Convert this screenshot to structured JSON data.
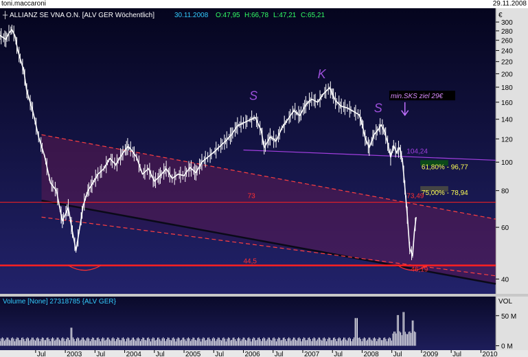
{
  "header": {
    "user": "toni.maccaroni",
    "date": "29.11.2008"
  },
  "chart_data": {
    "type": "line",
    "title": "ALLIANZ SE VNA O.N. [ALV GER  Wöchentlich]",
    "quote": {
      "date": "30.11.2008",
      "open": "O:47,95",
      "high": "H:66,78",
      "low": "L:47,21",
      "close": "C:65,21"
    },
    "currency_label": "€",
    "y_scale": "log",
    "ylim": [
      36,
      310
    ],
    "xlim": [
      2001.9,
      2010.25
    ],
    "y_ticks": [
      {
        "v": 300,
        "t": "300"
      },
      {
        "v": 280,
        "t": "280"
      },
      {
        "v": 260,
        "t": "260"
      },
      {
        "v": 240,
        "t": "240"
      },
      {
        "v": 220,
        "t": "220"
      },
      {
        "v": 200,
        "t": "200"
      },
      {
        "v": 180,
        "t": "180"
      },
      {
        "v": 160,
        "t": "160"
      },
      {
        "v": 140,
        "t": "140"
      },
      {
        "v": 120,
        "t": "120"
      },
      {
        "v": 100,
        "t": "100"
      },
      {
        "v": 80,
        "t": "80"
      },
      {
        "v": 60,
        "t": "60"
      },
      {
        "v": 40,
        "t": "40"
      }
    ],
    "x_ticks": [
      {
        "v": 2002.5,
        "t": "Jul"
      },
      {
        "v": 2003.0,
        "t": "2003"
      },
      {
        "v": 2003.5,
        "t": "Jul"
      },
      {
        "v": 2004.0,
        "t": "2004"
      },
      {
        "v": 2004.5,
        "t": "Jul"
      },
      {
        "v": 2005.0,
        "t": "2005"
      },
      {
        "v": 2005.5,
        "t": "Jul"
      },
      {
        "v": 2006.0,
        "t": "2006"
      },
      {
        "v": 2006.5,
        "t": "Jul"
      },
      {
        "v": 2007.0,
        "t": "2007"
      },
      {
        "v": 2007.5,
        "t": "Jul"
      },
      {
        "v": 2008.0,
        "t": "2008"
      },
      {
        "v": 2008.5,
        "t": "Jul"
      },
      {
        "v": 2009.0,
        "t": "2009"
      },
      {
        "v": 2009.5,
        "t": "Jul"
      },
      {
        "v": 2010.0,
        "t": "2010"
      }
    ],
    "series": [
      {
        "name": "ALLIANZ SE VNA O.N.",
        "x": [
          2001.9,
          2002.0,
          2002.05,
          2002.1,
          2002.15,
          2002.2,
          2002.3,
          2002.35,
          2002.45,
          2002.55,
          2002.65,
          2002.75,
          2002.85,
          2002.95,
          2003.05,
          2003.12,
          2003.18,
          2003.25,
          2003.3,
          2003.38,
          2003.45,
          2003.55,
          2003.65,
          2003.75,
          2003.85,
          2003.95,
          2004.05,
          2004.1,
          2004.2,
          2004.3,
          2004.4,
          2004.5,
          2004.6,
          2004.7,
          2004.8,
          2004.9,
          2005.0,
          2005.1,
          2005.2,
          2005.3,
          2005.4,
          2005.5,
          2005.6,
          2005.7,
          2005.8,
          2005.9,
          2006.0,
          2006.1,
          2006.2,
          2006.3,
          2006.35,
          2006.45,
          2006.55,
          2006.65,
          2006.75,
          2006.85,
          2006.95,
          2007.05,
          2007.15,
          2007.25,
          2007.35,
          2007.45,
          2007.5,
          2007.55,
          2007.65,
          2007.75,
          2007.85,
          2007.95,
          2008.0,
          2008.05,
          2008.12,
          2008.2,
          2008.27,
          2008.32,
          2008.38,
          2008.43,
          2008.48,
          2008.53,
          2008.58,
          2008.63,
          2008.68,
          2008.72,
          2008.76,
          2008.8,
          2008.85,
          2008.88,
          2008.91
        ],
        "values": [
          270,
          262,
          275,
          283,
          270,
          240,
          205,
          175,
          150,
          122,
          105,
          85,
          80,
          63,
          70,
          58,
          50,
          61,
          71,
          80,
          84,
          91,
          95,
          103,
          98,
          106,
          113,
          111,
          104,
          91,
          95,
          86,
          90,
          95,
          88,
          91,
          90,
          96,
          92,
          100,
          104,
          108,
          113,
          118,
          124,
          133,
          136,
          139,
          142,
          128,
          112,
          122,
          118,
          131,
          140,
          150,
          144,
          157,
          164,
          160,
          171,
          179,
          171,
          162,
          155,
          153,
          149,
          145,
          135,
          121,
          112,
          124,
          129,
          134,
          127,
          116,
          104,
          114,
          108,
          112,
          101,
          82,
          66,
          51,
          48,
          58,
          65
        ]
      }
    ],
    "volume": {
      "label": "Volume [None] 27318785 {ALV GER}",
      "unit_label": "VOL",
      "ticks": [
        {
          "v": 50,
          "t": "50 M"
        },
        {
          "v": 0,
          "t": "0 M"
        }
      ],
      "ylim_millions": [
        -5,
        68
      ],
      "base_millions": 14,
      "spikes": [
        {
          "x": 2003.1,
          "m": 30
        },
        {
          "x": 2007.9,
          "m": 46
        },
        {
          "x": 2008.6,
          "m": 51
        },
        {
          "x": 2008.7,
          "m": 56
        },
        {
          "x": 2008.85,
          "m": 42
        }
      ]
    },
    "annotations": {
      "labels": [
        {
          "text": "S",
          "x": 2006.1,
          "y": 163,
          "color": "#9b4fd9"
        },
        {
          "text": "K",
          "x": 2007.25,
          "y": 193,
          "color": "#9b4fd9"
        },
        {
          "text": "S",
          "x": 2008.2,
          "y": 148,
          "color": "#9b4fd9"
        }
      ],
      "note": {
        "text": "min.SKS ziel 29€",
        "x": 2008.48,
        "y": 165
      },
      "values": [
        {
          "text": "104,24",
          "x": 2008.75,
          "y": 107,
          "color": "#a23fe0"
        },
        {
          "text": "73,49",
          "x": 2008.75,
          "y": 75.5,
          "color": "#ff3030"
        },
        {
          "text": "46,19",
          "x": 2008.82,
          "y": 42.4,
          "color": "#ff3030"
        },
        {
          "text": "73",
          "x": 2006.07,
          "y": 75.5,
          "color": "#ff3030"
        },
        {
          "text": "44,5",
          "x": 2006.0,
          "y": 45.2,
          "color": "#ff3030"
        }
      ],
      "fib": [
        {
          "text": "61,80% - 96,77",
          "y": 96.77,
          "color": "#ffff55",
          "fill": "#0c4a1a"
        },
        {
          "text": "75,00% - 78,94",
          "y": 78.94,
          "color": "#ffff55",
          "fill": "#444444"
        }
      ],
      "hlines": [
        {
          "y": 73,
          "color": "#ff2020",
          "w": 1
        },
        {
          "y": 44.5,
          "color": "#ff2020",
          "w": 2.5
        }
      ],
      "neckline": {
        "x1": 2006.0,
        "y1": 110,
        "x2": 2010.25,
        "y2": 101.5
      },
      "channel_upper": {
        "x1": 2002.6,
        "y1": 124,
        "x2": 2010.25,
        "y2": 64
      },
      "channel_lower": {
        "x1": 2002.6,
        "y1": 74,
        "x2": 2010.25,
        "y2": 38.5
      },
      "channel_base": {
        "x1": 2002.6,
        "y1": 65,
        "x2": 2010.25,
        "y2": 41
      }
    },
    "colors": {
      "bg_top": "#05051e",
      "bg_bottom": "#22226a",
      "price": "#ffffff",
      "axis_panel": "#e0e0e0"
    }
  }
}
